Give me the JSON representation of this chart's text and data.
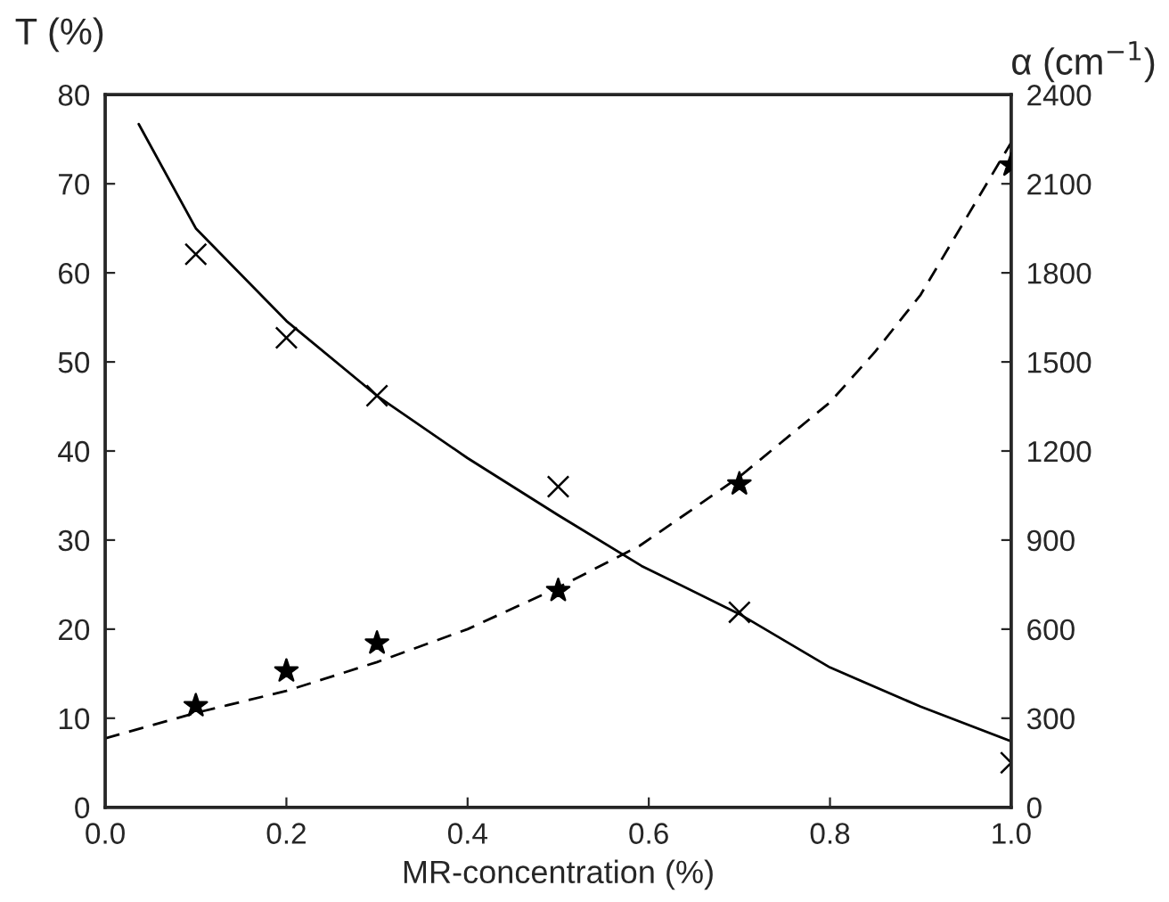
{
  "chart_data": {
    "type": "line",
    "xlabel": "MR-concentration (%)",
    "ylabel": "T (%)",
    "y2label": "α (cm$^{−1}$)",
    "xlim": [
      0,
      1
    ],
    "xticks": [
      {
        "value": 0,
        "label": "0.0"
      },
      0.2,
      0.4,
      0.6,
      0.8,
      {
        "value": 1,
        "label": "1.0"
      }
    ],
    "ylim": [
      0,
      80
    ],
    "yticks": [
      0,
      10,
      20,
      30,
      40,
      50,
      60,
      70,
      80
    ],
    "y2lim": [
      0,
      2400
    ],
    "y2ticks": [
      0,
      300,
      600,
      900,
      1200,
      1500,
      1800,
      2100,
      2400
    ],
    "grid": false,
    "legend": false,
    "series": [
      {
        "type": "scatter",
        "color": "#000000",
        "marker": "cross",
        "x": [
          0.1,
          0.2,
          0.3,
          0.5,
          0.7,
          1.0
        ],
        "values": [
          62.1,
          52.7,
          46.2,
          36.0,
          21.9,
          5.0
        ]
      },
      {
        "color": "#000000",
        "marker": "none",
        "line_style": "solid",
        "x": [
          0.037,
          0.1,
          0.2,
          0.3,
          0.4,
          0.5,
          0.592,
          0.7,
          0.8,
          0.9,
          1.0
        ],
        "values": [
          76.7,
          65,
          54.6,
          46.2,
          39.2,
          32.8,
          27.1,
          21.7,
          15.7,
          11.3,
          7.4
        ]
      },
      {
        "type": "scatter",
        "color": "#000000",
        "marker": "star",
        "axis": "y2",
        "x": [
          0.1,
          0.2,
          0.3,
          0.5,
          0.7,
          1.0
        ],
        "values": [
          342,
          459,
          553,
          730,
          1089,
          2163
        ]
      },
      {
        "color": "#000000",
        "marker": "none",
        "line_style": "dashed",
        "axis": "y2",
        "x": [
          0,
          0.1,
          0.2,
          0.3,
          0.4,
          0.5,
          0.59,
          0.7,
          0.8,
          0.85,
          0.9,
          1.0
        ],
        "values": [
          232,
          318,
          392,
          489,
          600,
          740,
          881,
          1113,
          1364,
          1535,
          1726,
          2239
        ]
      }
    ]
  }
}
